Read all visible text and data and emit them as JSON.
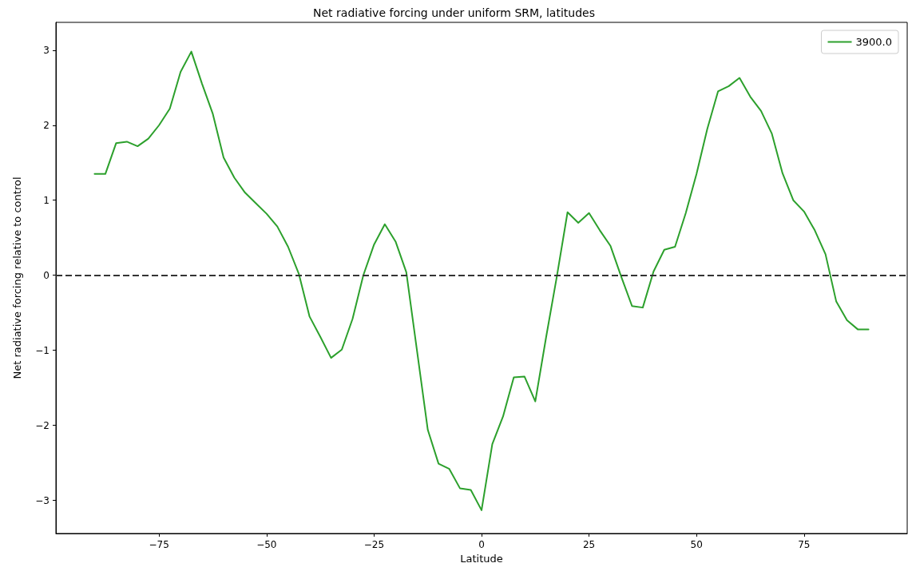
{
  "chart_data": {
    "type": "line",
    "title": "Net radiative forcing under uniform SRM, latitudes",
    "xlabel": "Latitude",
    "ylabel": "Net radiative forcing relative to control",
    "x": [
      -90,
      -87.5,
      -85,
      -82.5,
      -80,
      -77.5,
      -75,
      -72.5,
      -70,
      -67.5,
      -65,
      -62.5,
      -60,
      -57.5,
      -55,
      -52.5,
      -50,
      -47.5,
      -45,
      -42.5,
      -40,
      -37.5,
      -35,
      -32.5,
      -30,
      -27.5,
      -25,
      -22.5,
      -20,
      -17.5,
      -15,
      -12.5,
      -10,
      -7.5,
      -5,
      -2.5,
      0,
      2.5,
      5,
      7.5,
      10,
      12.5,
      15,
      17.5,
      20,
      22.5,
      25,
      27.5,
      30,
      32.5,
      35,
      37.5,
      40,
      42.5,
      45,
      47.5,
      50,
      52.5,
      55,
      57.5,
      60,
      62.5,
      65,
      67.5,
      70,
      72.5,
      75,
      77.5,
      80,
      82.5,
      85,
      87.5,
      90
    ],
    "series": [
      {
        "name": "3900.0",
        "color": "#2ca02c",
        "values": [
          1.35,
          1.35,
          1.76,
          1.78,
          1.72,
          1.82,
          2.0,
          2.22,
          2.71,
          2.98,
          2.55,
          2.15,
          1.57,
          1.3,
          1.1,
          0.96,
          0.82,
          0.65,
          0.38,
          0.02,
          -0.55,
          -0.82,
          -1.1,
          -0.99,
          -0.58,
          0.0,
          0.41,
          0.68,
          0.45,
          0.04,
          -1.01,
          -2.06,
          -2.51,
          -2.58,
          -2.84,
          -2.86,
          -3.13,
          -2.25,
          -1.88,
          -1.36,
          -1.35,
          -1.68,
          -0.83,
          -0.02,
          0.84,
          0.7,
          0.83,
          0.6,
          0.39,
          -0.02,
          -0.41,
          -0.43,
          0.05,
          0.34,
          0.38,
          0.83,
          1.35,
          1.95,
          2.45,
          2.52,
          2.63,
          2.38,
          2.19,
          1.89,
          1.36,
          1.0,
          0.85,
          0.6,
          0.28,
          -0.35,
          -0.6,
          -0.72,
          -0.72
        ]
      }
    ],
    "xlim": [
      -99,
      99
    ],
    "xticks": [
      -75,
      -50,
      -25,
      0,
      25,
      50,
      75
    ],
    "ylim": [
      -3.44,
      3.37
    ],
    "yticks": [
      -3,
      -2,
      -1,
      0,
      1,
      2,
      3
    ],
    "ref_lines": [
      {
        "axis": "y",
        "value": 0,
        "color": "#333333",
        "line_style": "dashed"
      }
    ],
    "grid": false,
    "legend": "top right",
    "marker": "none",
    "line_style": "solid"
  }
}
